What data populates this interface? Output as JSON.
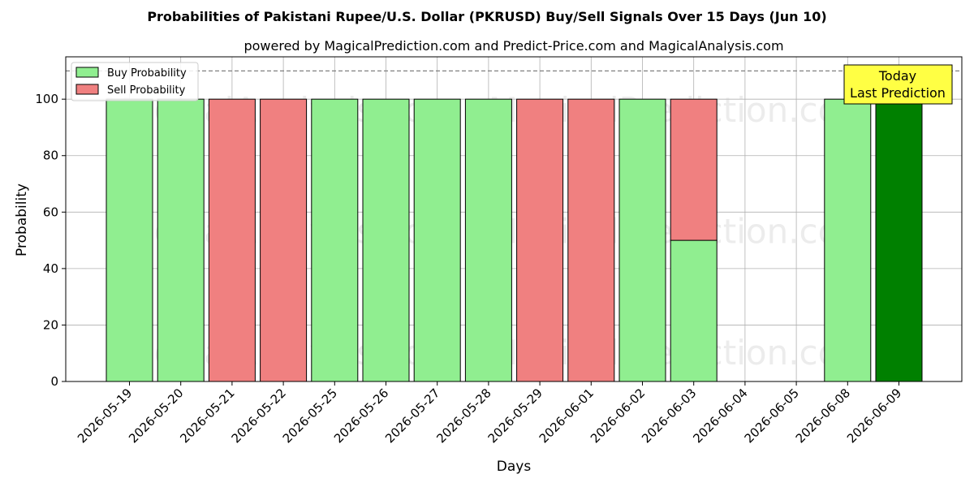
{
  "chart_data": {
    "type": "bar",
    "title": "Probabilities of Pakistani Rupee/U.S. Dollar (PKRUSD) Buy/Sell Signals Over 15 Days (Jun 10)",
    "subtitle": "powered by MagicalPrediction.com and Predict-Price.com and MagicalAnalysis.com",
    "xlabel": "Days",
    "ylabel": "Probability",
    "ylim": [
      0,
      115
    ],
    "yticks": [
      0,
      20,
      40,
      60,
      80,
      100
    ],
    "reference_line": 110,
    "grid": true,
    "legend_position": "top-left",
    "categories": [
      "2026-05-19",
      "2026-05-20",
      "2026-05-21",
      "2026-05-22",
      "2026-05-25",
      "2026-05-26",
      "2026-05-27",
      "2026-05-28",
      "2026-05-29",
      "2026-06-01",
      "2026-06-02",
      "2026-06-03",
      "2026-06-04",
      "2026-06-05",
      "2026-06-08",
      "2026-06-09"
    ],
    "series": [
      {
        "name": "Buy Probability",
        "color": "#90ee90",
        "values": [
          100,
          100,
          0,
          0,
          100,
          100,
          100,
          100,
          0,
          0,
          100,
          50,
          0,
          0,
          100,
          100
        ]
      },
      {
        "name": "Sell Probability",
        "color": "#f08080",
        "values": [
          0,
          0,
          100,
          100,
          0,
          0,
          0,
          0,
          100,
          100,
          0,
          50,
          0,
          0,
          0,
          0
        ]
      }
    ],
    "highlight": {
      "index": 15,
      "color": "#008000"
    },
    "annotation": {
      "lines": [
        "Today",
        "Last Prediction"
      ],
      "background": "#ffff44"
    },
    "watermarks": [
      "MagicalAnalysis.com",
      "MagicalPrediction.com"
    ]
  }
}
